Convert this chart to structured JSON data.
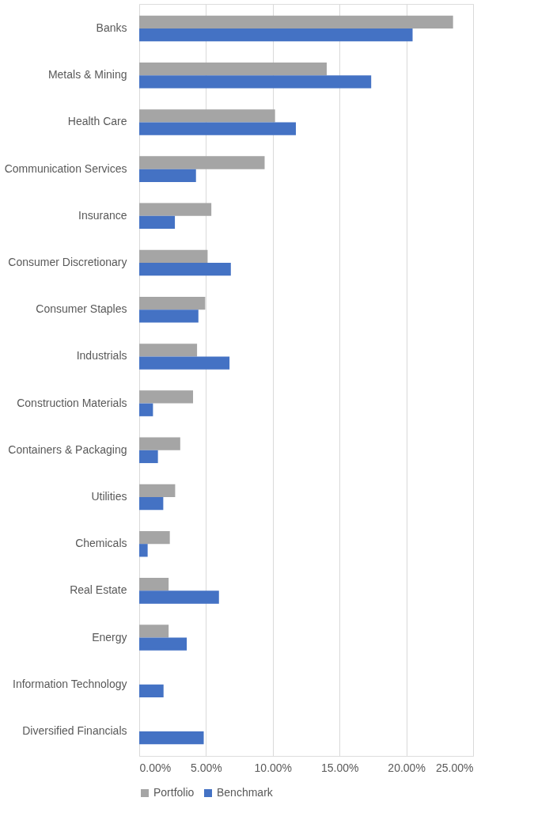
{
  "chart_data": {
    "type": "bar",
    "orientation": "horizontal",
    "categories": [
      "Banks",
      "Metals & Mining",
      "Health Care",
      "Communication Services",
      "Insurance",
      "Consumer Discretionary",
      "Consumer Staples",
      "Industrials",
      "Construction Materials",
      "Containers & Packaging",
      "Utilities",
      "Chemicals",
      "Real Estate",
      "Energy",
      "Information Technology",
      "Diversified Financials"
    ],
    "series": [
      {
        "name": "Portfolio",
        "color": "#a5a5a5",
        "values": [
          23.5,
          14.04,
          10.17,
          9.39,
          5.4,
          5.12,
          4.94,
          4.33,
          4.03,
          3.07,
          2.69,
          2.29,
          2.2,
          2.2,
          null,
          null
        ]
      },
      {
        "name": "Benchmark",
        "color": "#4472c4",
        "values": [
          20.47,
          17.37,
          11.73,
          4.25,
          2.67,
          6.86,
          4.43,
          6.76,
          1.03,
          1.4,
          1.8,
          0.63,
          5.97,
          3.56,
          1.82,
          4.83
        ]
      }
    ],
    "xlim": [
      0,
      25
    ],
    "xticks": [
      {
        "value": 0,
        "label": "0.00%"
      },
      {
        "value": 5,
        "label": "5.00%"
      },
      {
        "value": 10,
        "label": "10.00%"
      },
      {
        "value": 15,
        "label": "15.00%"
      },
      {
        "value": 20,
        "label": "20.00%"
      },
      {
        "value": 25,
        "label": "25.00%"
      }
    ],
    "grid": "x",
    "legend": "bottom"
  }
}
